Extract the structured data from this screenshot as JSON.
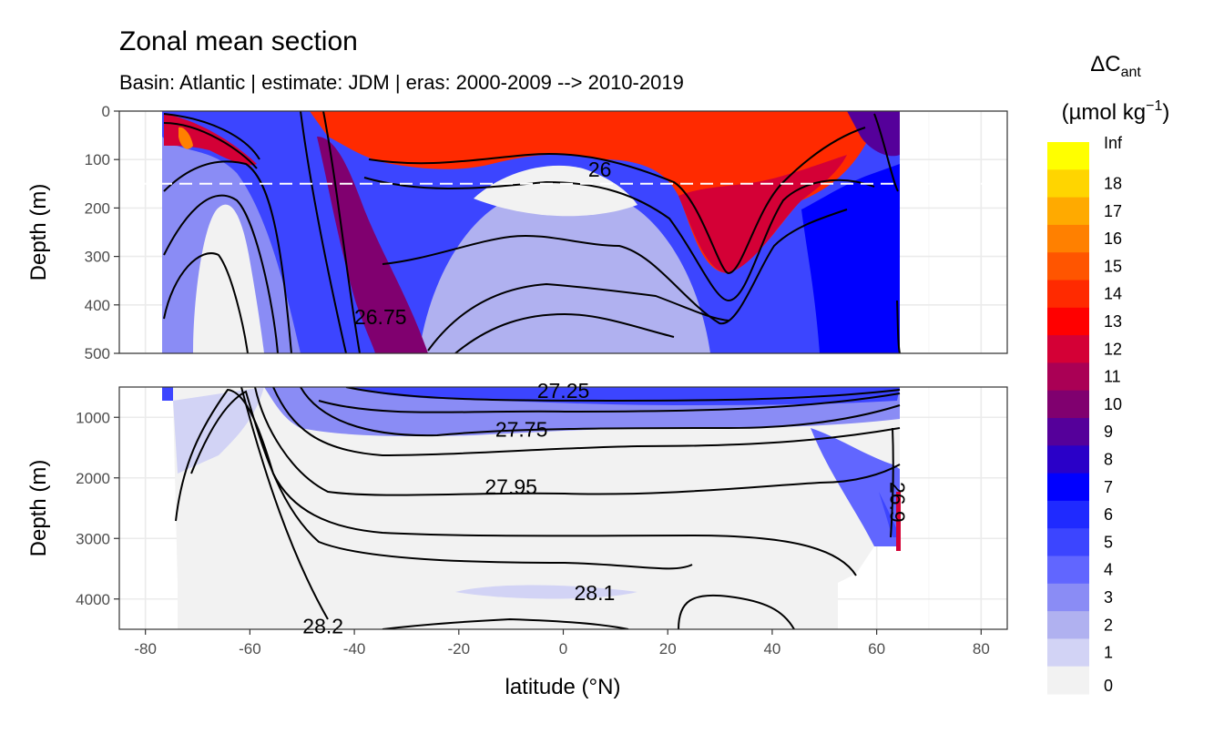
{
  "chart_data": {
    "type": "heatmap",
    "title": "Zonal mean section",
    "subtitle": "Basin: Atlantic | estimate: JDM  | eras: 2000-2009 --> 2010-2019",
    "xlabel": "latitude (°N)",
    "ylabel": "Depth (m)",
    "xlim": [
      -85,
      85
    ],
    "x_ticks": [
      "-80",
      "-60",
      "-40",
      "-20",
      "0",
      "20",
      "40",
      "60",
      "80"
    ],
    "panels": [
      {
        "name": "upper",
        "ylim": [
          0,
          500
        ],
        "y_ticks": [
          "0",
          "100",
          "200",
          "300",
          "400",
          "500"
        ],
        "reversed": true
      },
      {
        "name": "lower",
        "ylim": [
          500,
          4500
        ],
        "y_ticks": [
          "1000",
          "2000",
          "3000",
          "4000"
        ],
        "reversed": true
      }
    ],
    "reference_line": {
      "depth": 150,
      "style": "dashed",
      "color": "#ffffff"
    },
    "legend": {
      "title_main": "ΔC",
      "title_sub": "ant",
      "title_unit_pre": "(µmol kg",
      "title_unit_sup": "−1",
      "title_unit_post": ")",
      "breaks": [
        "Inf",
        "18",
        "17",
        "16",
        "15",
        "14",
        "13",
        "12",
        "11",
        "10",
        "9",
        "8",
        "7",
        "6",
        "5",
        "4",
        "3",
        "2",
        "1",
        "0"
      ],
      "colors": [
        "#ffff00",
        "#ffd500",
        "#ffaa00",
        "#ff8000",
        "#ff5500",
        "#ff2a00",
        "#ff0000",
        "#d40036",
        "#aa0055",
        "#80006f",
        "#55009a",
        "#2a00c8",
        "#0000ff",
        "#1f2aff",
        "#3c45ff",
        "#6166ff",
        "#8a8cf5",
        "#b0b1f0",
        "#d2d3f5",
        "#f2f2f2"
      ]
    },
    "contour_labels": [
      {
        "text": "26",
        "lat": 7,
        "depth": 120
      },
      {
        "text": "26.75",
        "lat": -35,
        "depth": 425
      },
      {
        "text": "27.25",
        "lat": 0,
        "depth": 560
      },
      {
        "text": "27.75",
        "lat": -8,
        "depth": 1200
      },
      {
        "text": "27.95",
        "lat": -10,
        "depth": 2150
      },
      {
        "text": "28.1",
        "lat": 6,
        "depth": 3900
      },
      {
        "text": "28.2",
        "lat": -46,
        "depth": 4450
      },
      {
        "text": "26.9",
        "lat": 64,
        "depth": 2400
      }
    ],
    "cant_field": {
      "upper": [
        {
          "lat": -77,
          "depth": 0,
          "value": 10
        },
        {
          "lat": -72,
          "depth": 60,
          "value": 14
        },
        {
          "lat": -65,
          "depth": 100,
          "value": 7
        },
        {
          "lat": -62,
          "depth": 300,
          "value": 0
        },
        {
          "lat": -40,
          "depth": 250,
          "value": 9
        },
        {
          "lat": -30,
          "depth": 50,
          "value": 13
        },
        {
          "lat": 0,
          "depth": 50,
          "value": 13
        },
        {
          "lat": 0,
          "depth": 200,
          "value": 1
        },
        {
          "lat": -10,
          "depth": 400,
          "value": 3
        },
        {
          "lat": 30,
          "depth": 200,
          "value": 11
        },
        {
          "lat": 30,
          "depth": 420,
          "value": 5
        },
        {
          "lat": 55,
          "depth": 250,
          "value": 6
        },
        {
          "lat": 64,
          "depth": 50,
          "value": 7
        }
      ],
      "lower": [
        {
          "lat": -60,
          "depth": 2000,
          "value": 0
        },
        {
          "lat": -20,
          "depth": 800,
          "value": 5
        },
        {
          "lat": 0,
          "depth": 1300,
          "value": 1
        },
        {
          "lat": 0,
          "depth": 3000,
          "value": 0
        },
        {
          "lat": 55,
          "depth": 1500,
          "value": 3
        },
        {
          "lat": 62,
          "depth": 2800,
          "value": 4
        }
      ]
    }
  }
}
